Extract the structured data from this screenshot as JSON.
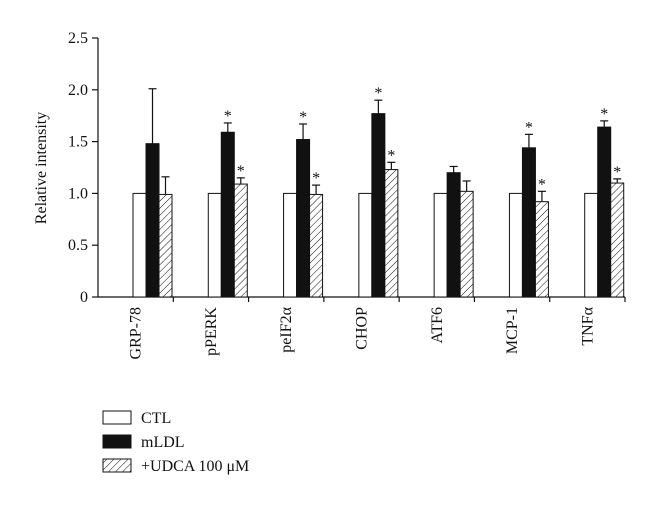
{
  "chart_data": {
    "type": "bar",
    "ylabel": "Relative intensity",
    "ylim": [
      0,
      2.5
    ],
    "yticks": [
      "0",
      "0.5",
      "1.0",
      "1.5",
      "2.0",
      "2.5"
    ],
    "categories": [
      "GRP-78",
      "pPERK",
      "peIF2α",
      "CHOP",
      "ATF6",
      "MCP-1",
      "TNFα"
    ],
    "series": [
      {
        "name": "CTL",
        "fill": "white",
        "values": [
          1.0,
          1.0,
          1.0,
          1.0,
          1.0,
          1.0,
          1.0
        ],
        "errors": [
          0,
          0,
          0,
          0,
          0,
          0,
          0
        ],
        "significant": [
          false,
          false,
          false,
          false,
          false,
          false,
          false
        ]
      },
      {
        "name": "mLDL",
        "fill": "black",
        "values": [
          1.48,
          1.59,
          1.52,
          1.77,
          1.2,
          1.44,
          1.64
        ],
        "errors": [
          0.53,
          0.09,
          0.15,
          0.13,
          0.06,
          0.13,
          0.06
        ],
        "significant": [
          false,
          true,
          true,
          true,
          false,
          true,
          true
        ]
      },
      {
        "name": "+UDCA 100 μM",
        "fill": "hatch",
        "values": [
          0.99,
          1.09,
          0.99,
          1.23,
          1.02,
          0.92,
          1.1
        ],
        "errors": [
          0.17,
          0.06,
          0.09,
          0.07,
          0.1,
          0.1,
          0.04
        ],
        "significant": [
          false,
          true,
          true,
          true,
          false,
          true,
          true
        ]
      }
    ],
    "significance_marker": "*",
    "legend_position": "bottom-left",
    "grid": false
  }
}
